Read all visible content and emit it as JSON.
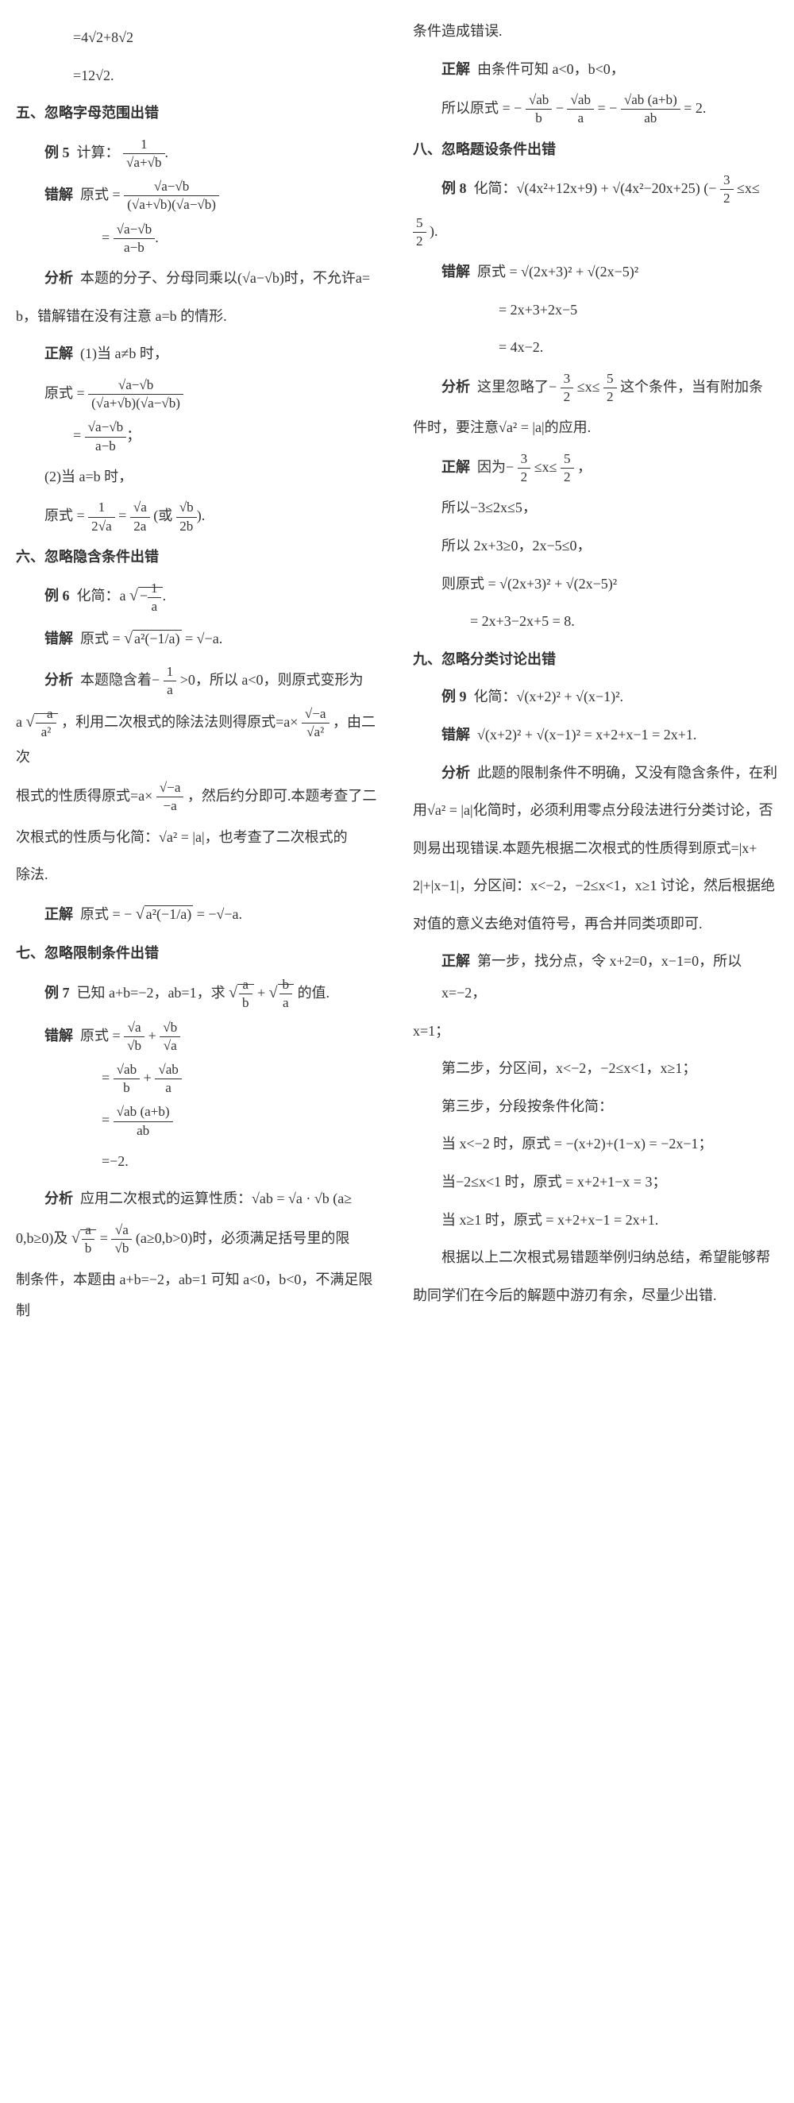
{
  "left": {
    "l1": "=4√2+8√2",
    "l2": "=12√2.",
    "sec5": "五、忽略字母范围出错",
    "ex5": "例 5",
    "ex5_text": "计算：",
    "ex5_expr_num": "1",
    "ex5_expr_den": "√a+√b",
    "wrong5": "错解",
    "wrong5_a": "原式 =",
    "wrong5_num1": "√a−√b",
    "wrong5_den1": "(√a+√b)(√a−√b)",
    "wrong5_num2": "√a−√b",
    "wrong5_den2": "a−b",
    "ana5": "分析",
    "ana5_text1": "本题的分子、分母同乘以(√a−√b)时，不允许a=",
    "ana5_text2": "b，错解错在没有注意 a=b 的情形.",
    "cor5": "正解",
    "cor5_1": "(1)当 a≠b 时，",
    "cor5_expr1_a": "原式 =",
    "cor5_expr1_num": "√a−√b",
    "cor5_expr1_den": "(√a+√b)(√a−√b)",
    "cor5_expr2_num": "√a−√b",
    "cor5_expr2_den": "a−b",
    "cor5_2": "(2)当 a=b 时，",
    "cor5_expr3_a": "原式 =",
    "cor5_3a_num": "1",
    "cor5_3a_den": "2√a",
    "cor5_3b_num": "√a",
    "cor5_3b_den": "2a",
    "cor5_3c_num": "√b",
    "cor5_3c_den": "2b",
    "sec6": "六、忽略隐含条件出错",
    "ex6": "例 6",
    "ex6_text": "化简：a",
    "ex6_inner_num": "1",
    "ex6_inner_den": "a",
    "wrong6": "错解",
    "wrong6_a": "原式 =",
    "wrong6_inner": "a²(−1/a)",
    "wrong6_res": " = √−a.",
    "ana6": "分析",
    "ana6_text1": "本题隐含着−",
    "ana6_frac_num": "1",
    "ana6_frac_den": "a",
    "ana6_text2": ">0，所以 a<0，则原式变形为",
    "ana6_line2a": "a",
    "ana6_l2_num": "−a",
    "ana6_l2_den": "a²",
    "ana6_line2b": "，利用二次根式的除法法则得原式=a×",
    "ana6_l2c_num": "√−a",
    "ana6_l2c_den": "√a²",
    "ana6_line2c": "，由二次",
    "ana6_line3a": "根式的性质得原式=a×",
    "ana6_l3_num": "√−a",
    "ana6_l3_den": "−a",
    "ana6_line3b": "，然后约分即可.本题考查了二",
    "ana6_line4": "次根式的性质与化简：√a² = |a|，也考查了二次根式的",
    "ana6_line5": "除法.",
    "cor6": "正解",
    "cor6_a": "原式 = −",
    "cor6_inner": "a²(−1/a)",
    "cor6_res": " = −√−a.",
    "sec7": "七、忽略限制条件出错",
    "ex7": "例 7",
    "ex7_text": "已知 a+b=−2，ab=1，求",
    "ex7_f1_num": "a",
    "ex7_f1_den": "b",
    "ex7_f2_num": "b",
    "ex7_f2_den": "a",
    "ex7_end": " 的值.",
    "wrong7": "错解",
    "wrong7_a": "原式 =",
    "wrong7_e1_num": "√a",
    "wrong7_e1_den": "√b",
    "wrong7_e2_num": "√b",
    "wrong7_e2_den": "√a",
    "wrong7_e3_num": "√ab",
    "wrong7_e3_den": "b",
    "wrong7_e4_num": "√ab",
    "wrong7_e4_den": "a",
    "wrong7_e5_num": "√ab (a+b)",
    "wrong7_e5_den": "ab",
    "wrong7_res": "=−2."
  },
  "right": {
    "ana7": "分析",
    "ana7_t1": "应用二次根式的运算性质：√ab = √a · √b (a≥",
    "ana7_t2a": "0,b≥0)及",
    "ana7_f1_num": "a",
    "ana7_f1_den": "b",
    "ana7_f2_num": "√a",
    "ana7_f2_den": "√b",
    "ana7_t2b": "(a≥0,b>0)时，必须满足括号里的限",
    "ana7_t3": "制条件，本题由 a+b=−2，ab=1 可知 a<0，b<0，不满足限制",
    "ana7_t4": "条件造成错误.",
    "cor7": "正解",
    "cor7_t1": "由条件可知 a<0，b<0，",
    "cor7_t2": "所以原式 = −",
    "cor7_e1_num": "√ab",
    "cor7_e1_den": "b",
    "cor7_e2_num": "√ab",
    "cor7_e2_den": "a",
    "cor7_e3_num": "√ab (a+b)",
    "cor7_e3_den": "ab",
    "cor7_res": " = 2.",
    "sec8": "八、忽略题设条件出错",
    "ex8": "例 8",
    "ex8_text": "化简：√(4x²+12x+9) + √(4x²−20x+25)",
    "ex8_cond_a": "(−",
    "ex8_c1_num": "3",
    "ex8_c1_den": "2",
    "ex8_cond_b": "≤x≤",
    "ex8_c2_num": "5",
    "ex8_c2_den": "2",
    "ex8_cond_c": ").",
    "wrong8": "错解",
    "wrong8_l1": "原式 = √(2x+3)² + √(2x−5)²",
    "wrong8_l2": "= 2x+3+2x−5",
    "wrong8_l3": "= 4x−2.",
    "ana8": "分析",
    "ana8_t1a": "这里忽略了−",
    "ana8_f1_num": "3",
    "ana8_f1_den": "2",
    "ana8_t1b": "≤x≤",
    "ana8_f2_num": "5",
    "ana8_f2_den": "2",
    "ana8_t1c": "这个条件，当有附加条",
    "ana8_t2": "件时，要注意√a² = |a|的应用.",
    "cor8": "正解",
    "cor8_t1a": "因为−",
    "cor8_f1_num": "3",
    "cor8_f1_den": "2",
    "cor8_t1b": "≤x≤",
    "cor8_f2_num": "5",
    "cor8_f2_den": "2",
    "cor8_t1c": "，",
    "cor8_t2": "所以−3≤2x≤5，",
    "cor8_t3": "所以 2x+3≥0，2x−5≤0，",
    "cor8_t4": "则原式 = √(2x+3)² + √(2x−5)²",
    "cor8_t5": "= 2x+3−2x+5 = 8.",
    "sec9": "九、忽略分类讨论出错",
    "ex9": "例 9",
    "ex9_text": "化简：√(x+2)² + √(x−1)².",
    "wrong9": "错解",
    "wrong9_l1": "√(x+2)² + √(x−1)² = x+2+x−1 = 2x+1.",
    "ana9": "分析",
    "ana9_t1": "此题的限制条件不明确，又没有隐含条件，在利",
    "ana9_t2": "用√a² = |a|化简时，必须利用零点分段法进行分类讨论，否",
    "ana9_t3": "则易出现错误.本题先根据二次根式的性质得到原式=|x+",
    "ana9_t4": "2|+|x−1|，分区间：x<−2，−2≤x<1，x≥1 讨论，然后根据绝",
    "ana9_t5": "对值的意义去绝对值符号，再合并同类项即可.",
    "cor9": "正解",
    "cor9_t1": "第一步，找分点，令 x+2=0，x−1=0，所以 x=−2，",
    "cor9_t2": "x=1；",
    "cor9_t3": "第二步，分区间，x<−2，−2≤x<1，x≥1；",
    "cor9_t4": "第三步，分段按条件化简：",
    "cor9_t5": "当 x<−2 时，原式 = −(x+2)+(1−x) = −2x−1；",
    "cor9_t6": "当−2≤x<1 时，原式 = x+2+1−x = 3；",
    "cor9_t7": "当 x≥1 时，原式 = x+2+x−1 = 2x+1.",
    "end1": "根据以上二次根式易错题举例归纳总结，希望能够帮",
    "end2": "助同学们在今后的解题中游刃有余，尽量少出错."
  }
}
